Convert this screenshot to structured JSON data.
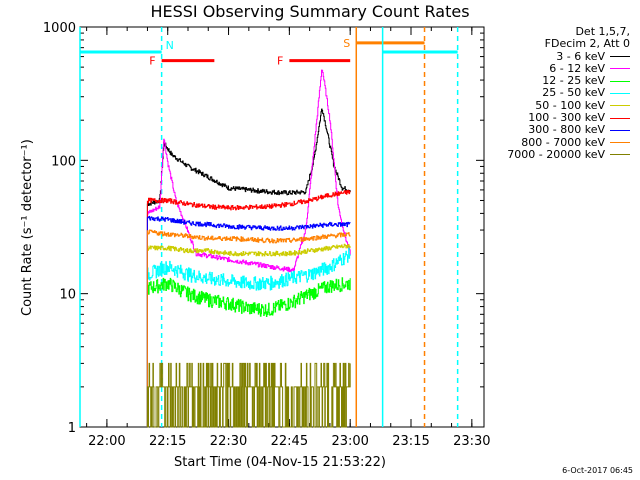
{
  "chart_data": {
    "type": "line",
    "title": "HESSI Observing Summary Count Rates",
    "xlabel": "Start Time (04-Nov-15 21:53:22)",
    "ylabel": "Count Rate (s⁻¹ detector⁻¹)",
    "yscale": "log",
    "ylim": [
      1,
      1000
    ],
    "xlim": [
      "21:53:22",
      "23:33:00"
    ],
    "x_ticks": [
      "22:00",
      "22:15",
      "22:30",
      "22:45",
      "23:00",
      "23:15",
      "23:30"
    ],
    "y_ticks": [
      "1",
      "10",
      "100",
      "1000"
    ],
    "legend_header": [
      "Det 1,5,7,",
      "FDecim 2, Att 0"
    ],
    "legend_position": "top-right, outside plot",
    "timestamp": "6-Oct-2017 06:45",
    "series": [
      {
        "name": "3 - 6 keV",
        "color": "#000000",
        "points": [
          [
            "22:10:00",
            47
          ],
          [
            "22:13:00",
            50
          ],
          [
            "22:14:00",
            135
          ],
          [
            "22:16:00",
            110
          ],
          [
            "22:20:00",
            90
          ],
          [
            "22:25:00",
            75
          ],
          [
            "22:30:00",
            62
          ],
          [
            "22:40:00",
            58
          ],
          [
            "22:45:00",
            57
          ],
          [
            "22:49:00",
            58
          ],
          [
            "22:51:00",
            100
          ],
          [
            "22:53:00",
            250
          ],
          [
            "22:54:00",
            180
          ],
          [
            "22:56:00",
            90
          ],
          [
            "22:58:00",
            62
          ],
          [
            "23:00:00",
            60
          ]
        ]
      },
      {
        "name": "6 - 12 keV",
        "color": "#ff00ff",
        "points": [
          [
            "22:10:00",
            40
          ],
          [
            "22:13:00",
            45
          ],
          [
            "22:14:00",
            150
          ],
          [
            "22:15:00",
            95
          ],
          [
            "22:17:00",
            50
          ],
          [
            "22:19:00",
            35
          ],
          [
            "22:22:00",
            20
          ],
          [
            "22:30:00",
            18
          ],
          [
            "22:40:00",
            16
          ],
          [
            "22:46:00",
            15
          ],
          [
            "22:49:00",
            30
          ],
          [
            "22:51:00",
            120
          ],
          [
            "22:53:00",
            500
          ],
          [
            "22:55:00",
            200
          ],
          [
            "22:57:00",
            45
          ],
          [
            "22:59:00",
            25
          ],
          [
            "23:00:00",
            20
          ]
        ]
      },
      {
        "name": "12 - 25 keV",
        "color": "#00ff00",
        "points": [
          [
            "22:10:00",
            11
          ],
          [
            "22:15:00",
            12
          ],
          [
            "22:20:00",
            10
          ],
          [
            "22:25:00",
            9
          ],
          [
            "22:30:00",
            8.5
          ],
          [
            "22:35:00",
            7.8
          ],
          [
            "22:40:00",
            7.6
          ],
          [
            "22:45:00",
            8.5
          ],
          [
            "22:50:00",
            10
          ],
          [
            "22:55:00",
            11.5
          ],
          [
            "23:00:00",
            12
          ]
        ]
      },
      {
        "name": "25 - 50 keV",
        "color": "#00ffff",
        "points": [
          [
            "22:10:00",
            14
          ],
          [
            "22:15:00",
            16
          ],
          [
            "22:20:00",
            14
          ],
          [
            "22:25:00",
            13
          ],
          [
            "22:30:00",
            12.5
          ],
          [
            "22:35:00",
            12
          ],
          [
            "22:40:00",
            12
          ],
          [
            "22:45:00",
            13
          ],
          [
            "22:50:00",
            14
          ],
          [
            "22:55:00",
            16
          ],
          [
            "23:00:00",
            20
          ]
        ]
      },
      {
        "name": "50 - 100 keV",
        "color": "#cccc00",
        "points": [
          [
            "22:10:00",
            22
          ],
          [
            "22:15:00",
            22
          ],
          [
            "22:20:00",
            21
          ],
          [
            "22:25:00",
            21
          ],
          [
            "22:30:00",
            20
          ],
          [
            "22:40:00",
            20
          ],
          [
            "22:45:00",
            20
          ],
          [
            "22:50:00",
            21
          ],
          [
            "22:55:00",
            22
          ],
          [
            "23:00:00",
            23
          ]
        ]
      },
      {
        "name": "100 - 300 keV",
        "color": "#ff0000",
        "points": [
          [
            "22:10:00",
            50
          ],
          [
            "22:15:00",
            50
          ],
          [
            "22:20:00",
            47
          ],
          [
            "22:25:00",
            45
          ],
          [
            "22:30:00",
            44
          ],
          [
            "22:40:00",
            45
          ],
          [
            "22:45:00",
            47
          ],
          [
            "22:50:00",
            50
          ],
          [
            "22:55:00",
            55
          ],
          [
            "23:00:00",
            58
          ]
        ]
      },
      {
        "name": "300 - 800 keV",
        "color": "#0000ff",
        "points": [
          [
            "22:10:00",
            37
          ],
          [
            "22:15:00",
            36
          ],
          [
            "22:20:00",
            34
          ],
          [
            "22:25:00",
            33
          ],
          [
            "22:30:00",
            32
          ],
          [
            "22:40:00",
            31
          ],
          [
            "22:45:00",
            31
          ],
          [
            "22:50:00",
            32
          ],
          [
            "22:55:00",
            33
          ],
          [
            "23:00:00",
            33
          ]
        ]
      },
      {
        "name": "800 - 7000 keV",
        "color": "#ff8000",
        "points": [
          [
            "22:10:00",
            29
          ],
          [
            "22:15:00",
            28
          ],
          [
            "22:20:00",
            27
          ],
          [
            "22:25:00",
            26
          ],
          [
            "22:30:00",
            26
          ],
          [
            "22:40:00",
            25
          ],
          [
            "22:45:00",
            25
          ],
          [
            "22:50:00",
            26
          ],
          [
            "22:55:00",
            27
          ],
          [
            "23:00:00",
            28
          ]
        ]
      },
      {
        "name": "7000 - 20000 keV",
        "color": "#808000",
        "points": [
          [
            "22:10:00",
            1.5
          ],
          [
            "22:15:00",
            1.5
          ],
          [
            "22:20:00",
            1.5
          ],
          [
            "22:25:00",
            1.5
          ],
          [
            "22:30:00",
            1.5
          ],
          [
            "22:35:00",
            1.5
          ],
          [
            "22:40:00",
            1.5
          ],
          [
            "22:45:00",
            1.5
          ],
          [
            "22:50:00",
            1.5
          ],
          [
            "22:55:00",
            1.5
          ],
          [
            "23:00:00",
            1.5
          ]
        ]
      }
    ],
    "flag_markers": [
      {
        "label": "N",
        "color": "#00ffff",
        "level": 650,
        "solid_line": "21:53:22",
        "dashed_line": "22:13:30",
        "bar": [
          "21:53:22",
          "22:13:30"
        ]
      },
      {
        "label": "F",
        "color": "#ff0000",
        "level": 560,
        "bar": [
          "22:13:30",
          "22:26:30"
        ]
      },
      {
        "label": "F",
        "color": "#ff0000",
        "level": 560,
        "bar": [
          "22:45:00",
          "23:00:00"
        ]
      },
      {
        "label": "S",
        "color": "#ff8000",
        "level": 760,
        "solid_line": "23:01:30",
        "dashed_line": "23:18:20",
        "bar": [
          "23:01:30",
          "23:18:20"
        ]
      },
      {
        "label": "",
        "color": "#00ffff",
        "level": 650,
        "solid_line": "23:08:00",
        "dashed_line": "23:26:30",
        "bar": [
          "23:08:00",
          "23:26:30"
        ]
      }
    ]
  }
}
